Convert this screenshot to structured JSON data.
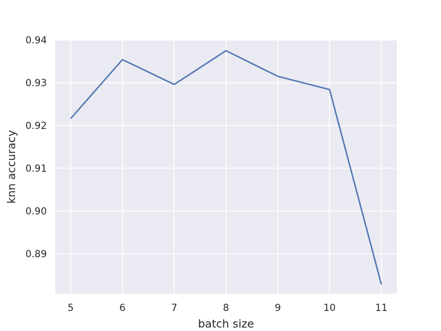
{
  "chart_data": {
    "type": "line",
    "title": "",
    "xlabel": "batch size",
    "ylabel": "knn accuracy",
    "x": [
      5,
      6,
      7,
      8,
      9,
      10,
      11
    ],
    "series": [
      {
        "values": [
          0.9216,
          0.9354,
          0.9296,
          0.9375,
          0.9315,
          0.9284,
          0.8828
        ]
      }
    ],
    "xticks": [
      "5",
      "6",
      "7",
      "8",
      "9",
      "10",
      "11"
    ],
    "yticks": [
      "0.89",
      "0.90",
      "0.91",
      "0.92",
      "0.93",
      "0.94"
    ],
    "xlim": [
      4.7,
      11.3
    ],
    "ylim": [
      0.8806,
      0.94
    ],
    "grid": true,
    "colors": {
      "background": "#eaeaf2",
      "grid": "#ffffff",
      "line": "#4c72b0"
    }
  }
}
